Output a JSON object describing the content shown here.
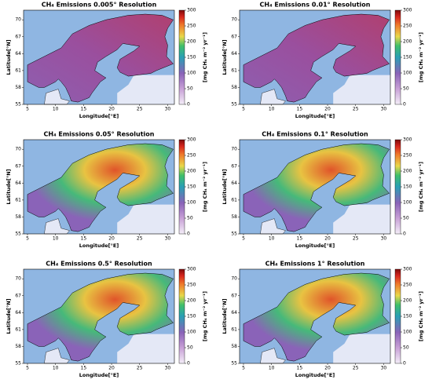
{
  "chart_data": [
    {
      "type": "map",
      "title": "CH₄ Emissions 0.005° Resolution",
      "xlabel": "Longitude[°E]",
      "ylabel": "Latitude[°N]",
      "xlim": [
        4.3,
        31.2
      ],
      "xticks": [
        5,
        10,
        15,
        20,
        25,
        30
      ],
      "ylim": [
        55,
        71.7
      ],
      "yticks": [
        55,
        58,
        61,
        64,
        67,
        70
      ],
      "clabel": "[mg CH₄ m⁻² yr⁻¹]",
      "clim": [
        0,
        300
      ],
      "cticks": [
        0,
        50,
        100,
        150,
        200,
        250,
        300
      ]
    },
    {
      "type": "map",
      "title": "CH₄ Emissions 0.01° Resolution",
      "xlabel": "Longitude[°E]",
      "ylabel": "Latitude[°N]",
      "xlim": [
        4.3,
        31.2
      ],
      "xticks": [
        5,
        10,
        15,
        20,
        25,
        30
      ],
      "ylim": [
        55,
        71.7
      ],
      "yticks": [
        55,
        58,
        61,
        64,
        67,
        70
      ],
      "clabel": "[mg CH₄ m⁻² yr⁻¹]",
      "clim": [
        0,
        300
      ],
      "cticks": [
        0,
        50,
        100,
        150,
        200,
        250,
        300
      ]
    },
    {
      "type": "map",
      "title": "CH₄ Emissions 0.05° Resolution",
      "xlabel": "Longitude[°E]",
      "ylabel": "Latitude[°N]",
      "xlim": [
        4.3,
        31.2
      ],
      "xticks": [
        5,
        10,
        15,
        20,
        25,
        30
      ],
      "ylim": [
        55,
        71.7
      ],
      "yticks": [
        55,
        58,
        61,
        64,
        67,
        70
      ],
      "clabel": "[mg CH₄ m⁻² yr⁻¹]",
      "clim": [
        0,
        300
      ],
      "cticks": [
        0,
        50,
        100,
        150,
        200,
        250,
        300
      ]
    },
    {
      "type": "map",
      "title": "CH₄ Emissions 0.1° Resolution",
      "xlabel": "Longitude[°E]",
      "ylabel": "Latitude[°N]",
      "xlim": [
        4.3,
        31.2
      ],
      "xticks": [
        5,
        10,
        15,
        20,
        25,
        30
      ],
      "ylim": [
        55,
        71.7
      ],
      "yticks": [
        55,
        58,
        61,
        64,
        67,
        70
      ],
      "clabel": "[mg CH₄ m⁻² yr⁻¹]",
      "clim": [
        0,
        300
      ],
      "cticks": [
        0,
        50,
        100,
        150,
        200,
        250,
        300
      ]
    },
    {
      "type": "map",
      "title": "CH₄ Emissions 0.5° Resolution",
      "xlabel": "Longitude[°E]",
      "ylabel": "Latitude[°N]",
      "xlim": [
        4.3,
        31.2
      ],
      "xticks": [
        5,
        10,
        15,
        20,
        25,
        30
      ],
      "ylim": [
        55,
        71.7
      ],
      "yticks": [
        55,
        58,
        61,
        64,
        67,
        70
      ],
      "clabel": "[mg CH₄ m⁻² yr⁻¹]",
      "clim": [
        0,
        300
      ],
      "cticks": [
        0,
        50,
        100,
        150,
        200,
        250,
        300
      ]
    },
    {
      "type": "map",
      "title": "CH₄ Emissions 1° Resolution",
      "xlabel": "Longitude[°E]",
      "ylabel": "Latitude[°N]",
      "xlim": [
        4.3,
        31.2
      ],
      "xticks": [
        5,
        10,
        15,
        20,
        25,
        30
      ],
      "ylim": [
        55,
        71.7
      ],
      "yticks": [
        55,
        58,
        61,
        64,
        67,
        70
      ],
      "clabel": "[mg CH₄ m⁻² yr⁻¹]",
      "clim": [
        0,
        300
      ],
      "cticks": [
        0,
        50,
        100,
        150,
        200,
        250,
        300
      ]
    }
  ]
}
